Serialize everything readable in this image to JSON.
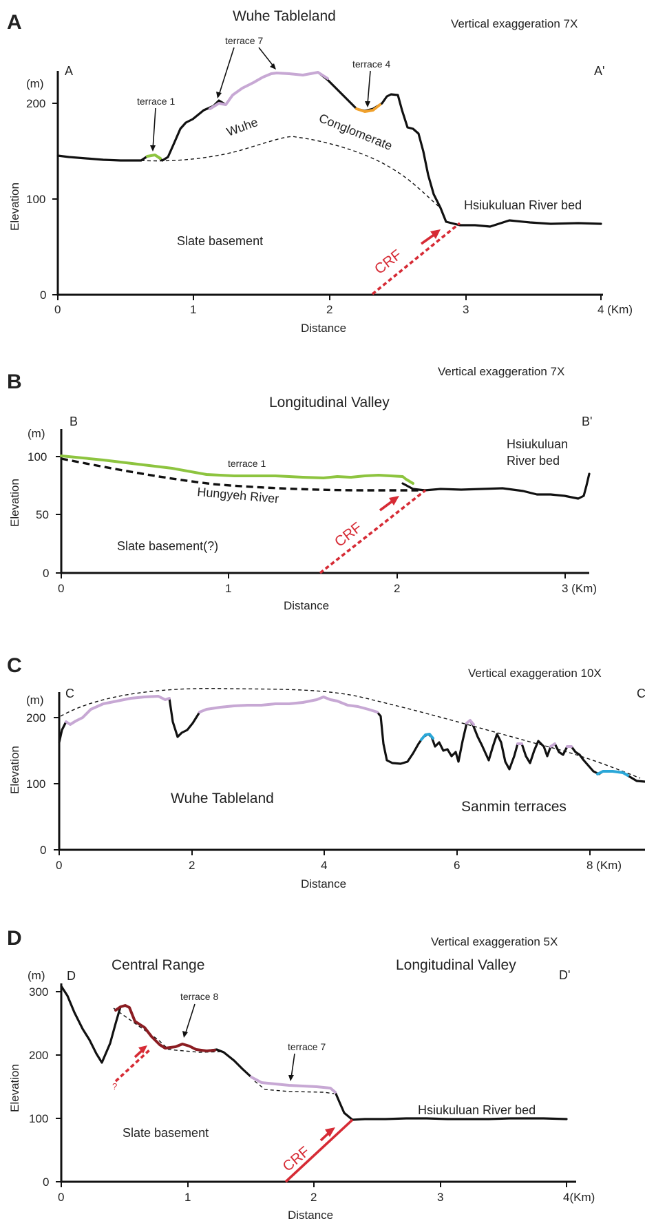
{
  "panels": {
    "a": {
      "letter": "A",
      "title": "Wuhe Tableland",
      "ve": "Vertical exaggeration 7X",
      "start": "A",
      "end": "A'",
      "unit": "(m)",
      "yticks": [
        "0",
        "100",
        "200"
      ],
      "xticks": [
        "0",
        "1",
        "2",
        "3",
        "4 (Km)"
      ],
      "ylabel": "Elevation",
      "xlabel": "Distance",
      "labels": {
        "terrace1": "terrace 1",
        "terrace7": "terrace 7",
        "terrace4": "terrace 4",
        "wuhe": "Wuhe",
        "conglomerate": "Conglomerate",
        "river": "Hsiukuluan River bed",
        "slate": "Slate basement",
        "crf": "CRF"
      }
    },
    "b": {
      "letter": "B",
      "title": "Longitudinal Valley",
      "ve": "Vertical exaggeration 7X",
      "start": "B",
      "end": "B'",
      "unit": "(m)",
      "yticks": [
        "0",
        "50",
        "100"
      ],
      "xticks": [
        "0",
        "1",
        "2",
        "3 (Km)"
      ],
      "ylabel": "Elevation",
      "xlabel": "Distance",
      "labels": {
        "terrace1": "terrace 1",
        "hungyeh": "Hungyeh River",
        "river1": "Hsiukuluan",
        "river2": "River bed",
        "slate": "Slate basement(?)",
        "crf": "CRF"
      }
    },
    "c": {
      "letter": "C",
      "title": "",
      "ve": "Vertical exaggeration 10X",
      "start": "C",
      "end": "C",
      "unit": "(m)",
      "yticks": [
        "0",
        "100",
        "200"
      ],
      "xticks": [
        "0",
        "2",
        "4",
        "6",
        "8 (Km)"
      ],
      "ylabel": "Elevation",
      "xlabel": "Distance",
      "labels": {
        "wuhe": "Wuhe Tableland",
        "sanmin": "Sanmin terraces"
      }
    },
    "d": {
      "letter": "D",
      "title": "",
      "ve": "Vertical exaggeration 5X",
      "start": "D",
      "end": "D'",
      "unit": "(m)",
      "yticks": [
        "0",
        "100",
        "200",
        "300"
      ],
      "xticks": [
        "0",
        "1",
        "2",
        "3",
        "4(Km)"
      ],
      "ylabel": "Elevation",
      "xlabel": "Distance",
      "labels": {
        "central": "Central Range",
        "valley": "Longitudinal Valley",
        "terrace8": "terrace 8",
        "terrace7": "terrace 7",
        "river": "Hsiukuluan River bed",
        "slate": "Slate basement",
        "crf": "CRF",
        "q": "?"
      }
    }
  },
  "colors": {
    "terrace_green": "#8dc43f",
    "terrace_lilac": "#c7a8d4",
    "terrace_orange": "#f0a12c",
    "terrace_blue": "#2aa7d8",
    "terrace_darkred": "#8b1d22",
    "crf_red": "#d62b35"
  }
}
